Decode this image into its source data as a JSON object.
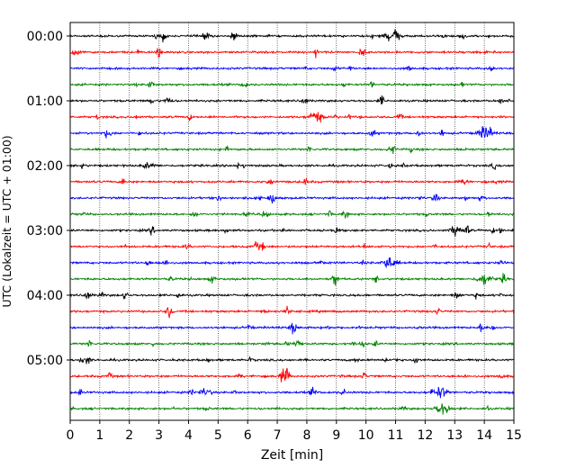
{
  "chart_data": {
    "type": "line",
    "subtype": "helicorder",
    "xlabel": "Zeit  [min]",
    "ylabel": "UTC (Lokalzeit = UTC + 01:00)",
    "xlim": [
      0,
      15
    ],
    "x_ticks": [
      "0",
      "1",
      "2",
      "3",
      "4",
      "5",
      "6",
      "7",
      "8",
      "9",
      "10",
      "11",
      "12",
      "13",
      "14",
      "15"
    ],
    "y_tick_labels": [
      "00:00",
      "01:00",
      "02:00",
      "03:00",
      "04:00",
      "05:00"
    ],
    "grid": "vertical dotted at each minute",
    "trace_minutes": 15,
    "trace_count": 24,
    "trace_colors": [
      "#000000",
      "#ff0000",
      "#0000ff",
      "#008000"
    ],
    "notable_events": [
      {
        "trace": 0,
        "minute": 10.8
      },
      {
        "trace": 5,
        "minute": 8.3
      },
      {
        "trace": 6,
        "minute": 14.0
      },
      {
        "trace": 12,
        "minute": 13.1
      },
      {
        "trace": 14,
        "minute": 10.8
      },
      {
        "trace": 15,
        "minute": 14.0
      },
      {
        "trace": 22,
        "minute": 12.5
      },
      {
        "trace": 23,
        "minute": 12.6
      }
    ]
  }
}
